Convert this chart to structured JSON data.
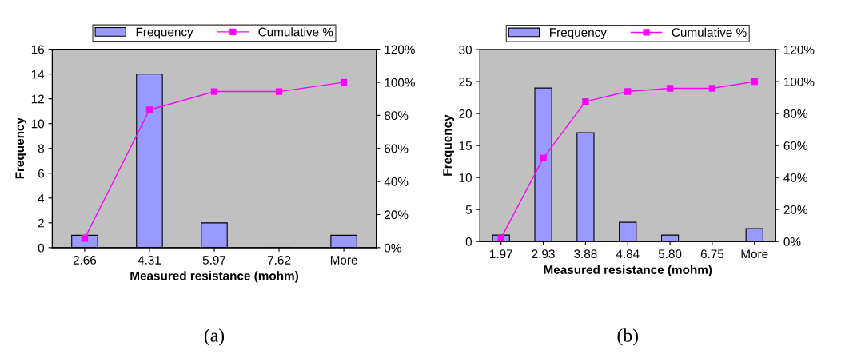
{
  "chart_data": [
    {
      "type": "bar",
      "xlabel": "Measured resistance (mohm)",
      "ylabel": "Frequency",
      "categories": [
        "2.66",
        "4.31",
        "5.97",
        "7.62",
        "More"
      ],
      "series": [
        {
          "name": "Frequency",
          "type": "bar",
          "color": "#9999ff",
          "values": [
            1,
            14,
            2,
            0,
            1
          ]
        },
        {
          "name": "Cumulative %",
          "type": "line",
          "axis": "y2",
          "color": "#ff00ff",
          "values": [
            5.6,
            83.3,
            94.4,
            94.4,
            100
          ]
        }
      ],
      "ylim": [
        0,
        16
      ],
      "yticks": [
        0,
        2,
        4,
        6,
        8,
        10,
        12,
        14,
        16
      ],
      "y2lim": [
        0,
        120
      ],
      "y2ticks": [
        {
          "value": 0,
          "label": "0%"
        },
        {
          "value": 20,
          "label": "20%"
        },
        {
          "value": 40,
          "label": "40%"
        },
        {
          "value": 60,
          "label": "60%"
        },
        {
          "value": 80,
          "label": "80%"
        },
        {
          "value": 100,
          "label": "100%"
        },
        {
          "value": 120,
          "label": "120%"
        }
      ],
      "marker": "square",
      "legend": "top",
      "grid": false,
      "annotations": [
        "(a)"
      ]
    },
    {
      "type": "bar",
      "xlabel": "Measured resistance (mohm)",
      "ylabel": "Frequency",
      "categories": [
        "1.97",
        "2.93",
        "3.88",
        "4.84",
        "5.80",
        "6.75",
        "More"
      ],
      "series": [
        {
          "name": "Frequency",
          "type": "bar",
          "color": "#9999ff",
          "values": [
            1,
            24,
            17,
            3,
            1,
            0,
            2
          ]
        },
        {
          "name": "Cumulative %",
          "type": "line",
          "axis": "y2",
          "color": "#ff00ff",
          "values": [
            2.1,
            52.1,
            87.5,
            93.8,
            95.8,
            95.8,
            100
          ]
        }
      ],
      "ylim": [
        0,
        30
      ],
      "yticks": [
        0,
        5,
        10,
        15,
        20,
        25,
        30
      ],
      "y2lim": [
        0,
        120
      ],
      "y2ticks": [
        {
          "value": 0,
          "label": "0%"
        },
        {
          "value": 20,
          "label": "20%"
        },
        {
          "value": 40,
          "label": "40%"
        },
        {
          "value": 60,
          "label": "60%"
        },
        {
          "value": 80,
          "label": "80%"
        },
        {
          "value": 100,
          "label": "100%"
        },
        {
          "value": 120,
          "label": "120%"
        }
      ],
      "marker": "square",
      "legend": "top",
      "grid": false,
      "annotations": [
        "(b)"
      ]
    }
  ]
}
